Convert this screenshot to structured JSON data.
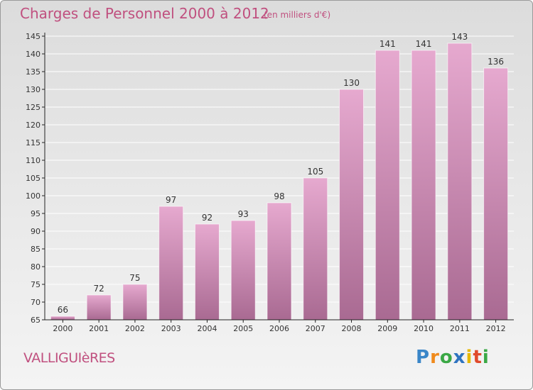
{
  "title": "Charges de Personnel 2000 à 2012",
  "subtitle": "(en milliers d'€)",
  "commune": "VALLIGUIèRES",
  "logo": {
    "letters": [
      {
        "char": "P",
        "color": "#3a86c8"
      },
      {
        "char": "r",
        "color": "#f08a1c"
      },
      {
        "char": "o",
        "color": "#3aa845"
      },
      {
        "char": "x",
        "color": "#2f74c0"
      },
      {
        "char": "i",
        "color": "#e6b800"
      },
      {
        "char": "t",
        "color": "#e04a2c"
      },
      {
        "char": "i",
        "color": "#3aa845"
      }
    ]
  },
  "colors": {
    "bar_top": "#e6a9cf",
    "bar_bottom": "#a96a92",
    "text_accent": "#c0507f",
    "axis": "#222222",
    "grid": "#ffffff"
  },
  "chart_data": {
    "type": "bar",
    "title": "Charges de Personnel 2000 à 2012",
    "subtitle": "(en milliers d'€)",
    "xlabel": "",
    "ylabel": "",
    "categories": [
      "2000",
      "2001",
      "2002",
      "2003",
      "2004",
      "2005",
      "2006",
      "2007",
      "2008",
      "2009",
      "2010",
      "2011",
      "2012"
    ],
    "values": [
      66,
      72,
      75,
      97,
      92,
      93,
      98,
      105,
      130,
      141,
      141,
      143,
      136
    ],
    "ylim": [
      65,
      145
    ],
    "yticks": [
      65,
      70,
      75,
      80,
      85,
      90,
      95,
      100,
      105,
      110,
      115,
      120,
      125,
      130,
      135,
      140,
      145
    ],
    "grid": true,
    "legend": "none"
  }
}
